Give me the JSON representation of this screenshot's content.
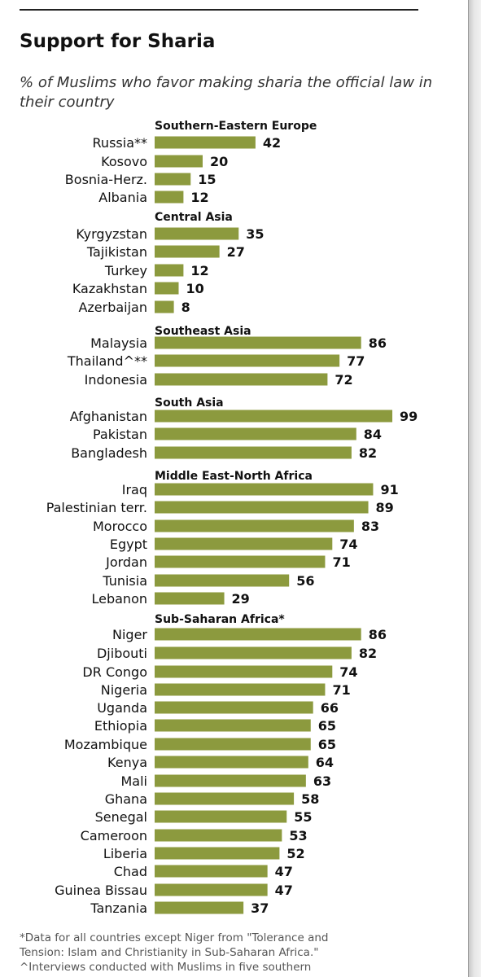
{
  "title": "Support for Sharia",
  "subtitle": "% of Muslims who favor making sharia the official law in their country",
  "colors": {
    "bar": "#8c9a3e",
    "text": "#111111",
    "footnote": "#555555"
  },
  "chart_data": {
    "type": "bar",
    "orientation": "horizontal",
    "grid": false,
    "legend": "none",
    "xlim": [
      0,
      100
    ],
    "groups": [
      {
        "name": "Southern-Eastern  Europe",
        "categories": [
          "Russia**",
          "Kosovo",
          "Bosnia-Herz.",
          "Albania"
        ],
        "values": [
          42,
          20,
          15,
          12
        ]
      },
      {
        "name": "Central Asia",
        "categories": [
          "Kyrgyzstan",
          "Tajikistan",
          "Turkey",
          "Kazakhstan",
          "Azerbaijan"
        ],
        "values": [
          35,
          27,
          12,
          10,
          8
        ]
      },
      {
        "name": "Southeast Asia",
        "categories": [
          "Malaysia",
          "Thailand^**",
          "Indonesia"
        ],
        "values": [
          86,
          77,
          72
        ]
      },
      {
        "name": "South Asia",
        "categories": [
          "Afghanistan",
          "Pakistan",
          "Bangladesh"
        ],
        "values": [
          99,
          84,
          82
        ]
      },
      {
        "name": "Middle East-North  Africa",
        "categories": [
          "Iraq",
          "Palestinian terr.",
          "Morocco",
          "Egypt",
          "Jordan",
          "Tunisia",
          "Lebanon"
        ],
        "values": [
          91,
          89,
          83,
          74,
          71,
          56,
          29
        ]
      },
      {
        "name": "Sub-Saharan  Africa*",
        "categories": [
          "Niger",
          "Djibouti",
          "DR Congo",
          "Nigeria",
          "Uganda",
          "Ethiopia",
          "Mozambique",
          "Kenya",
          "Mali",
          "Ghana",
          "Senegal",
          "Cameroon",
          "Liberia",
          "Chad",
          "Guinea Bissau",
          "Tanzania"
        ],
        "values": [
          86,
          82,
          74,
          71,
          66,
          65,
          65,
          64,
          63,
          58,
          55,
          53,
          52,
          47,
          47,
          37
        ]
      }
    ]
  },
  "footnote": {
    "lines": [
      "*Data for all countries except Niger from \"Tolerance and",
      "Tension: Islam and Christianity in Sub-Saharan Africa.\"",
      "^Interviews conducted with Muslims in five southern"
    ]
  }
}
